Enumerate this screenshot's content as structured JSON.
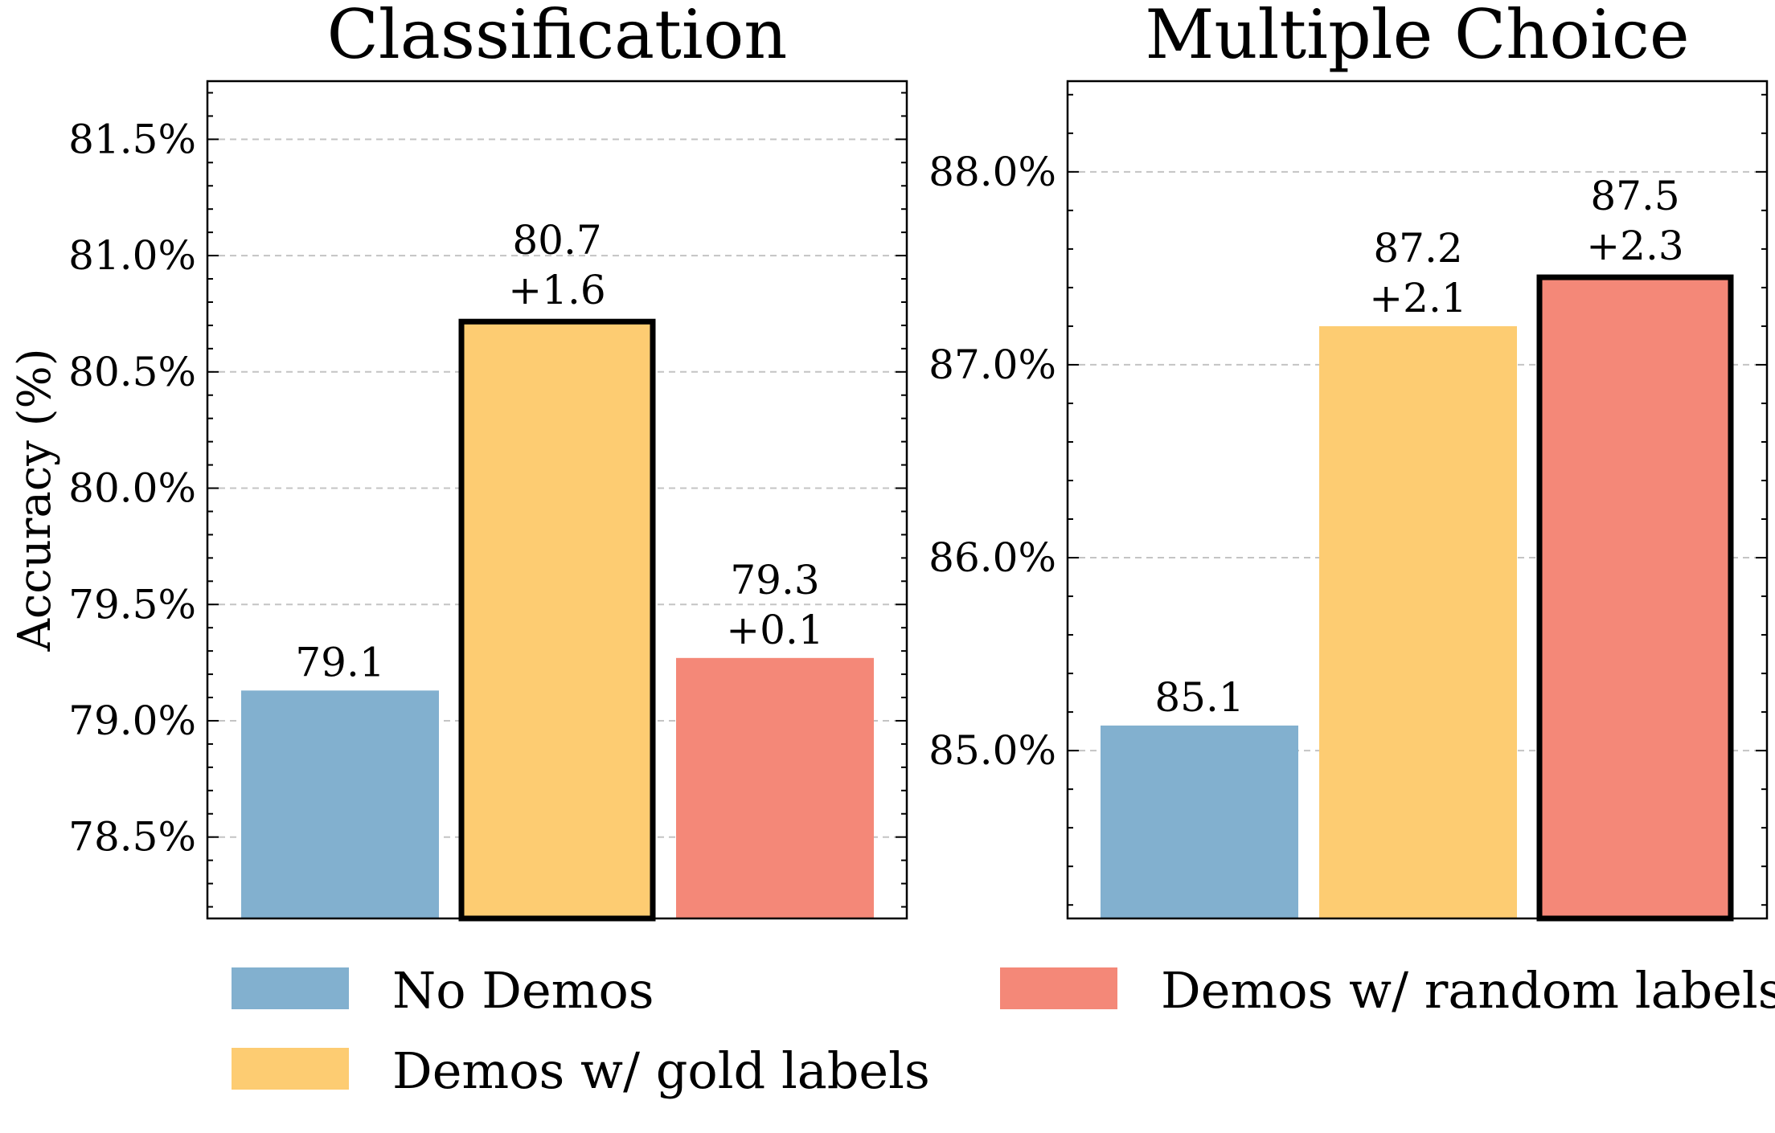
{
  "chart_data": [
    {
      "type": "bar",
      "title": "Classification",
      "ylabel": "Accuracy (%)",
      "categories": [
        "No Demos",
        "Demos w/ gold labels",
        "Demos w/ random labels"
      ],
      "values": [
        79.13,
        80.73,
        79.27
      ],
      "value_labels": [
        "79.1",
        "80.7",
        "79.3"
      ],
      "delta_labels": [
        "",
        "+1.6",
        "+0.1"
      ],
      "highlighted": [
        false,
        true,
        false
      ],
      "ylim": [
        78.15,
        81.75
      ],
      "yticks": [
        78.5,
        79.0,
        79.5,
        80.0,
        80.5,
        81.0,
        81.5
      ],
      "ytick_labels": [
        "78.5%",
        "79.0%",
        "79.5%",
        "80.0%",
        "80.5%",
        "81.0%",
        "81.5%"
      ],
      "grid": true
    },
    {
      "type": "bar",
      "title": "Multiple Choice",
      "ylabel": "",
      "categories": [
        "No Demos",
        "Demos w/ gold labels",
        "Demos w/ random labels"
      ],
      "values": [
        85.13,
        87.2,
        87.47
      ],
      "value_labels": [
        "85.1",
        "87.2",
        "87.5"
      ],
      "delta_labels": [
        "",
        "+2.1",
        "+2.3"
      ],
      "highlighted": [
        false,
        false,
        true
      ],
      "ylim": [
        84.13,
        88.47
      ],
      "yticks": [
        85.0,
        86.0,
        87.0,
        88.0
      ],
      "ytick_labels": [
        "85.0%",
        "86.0%",
        "87.0%",
        "88.0%"
      ],
      "grid": true
    }
  ],
  "colors": {
    "No Demos": "#82b0cf",
    "Demos w/ gold labels": "#fdcc72",
    "Demos w/ random labels": "#f48878",
    "highlight_edge": "#000000"
  },
  "legend": {
    "placement": "bottom",
    "items": [
      "No Demos",
      "Demos w/ gold labels",
      "Demos w/ random labels"
    ]
  }
}
